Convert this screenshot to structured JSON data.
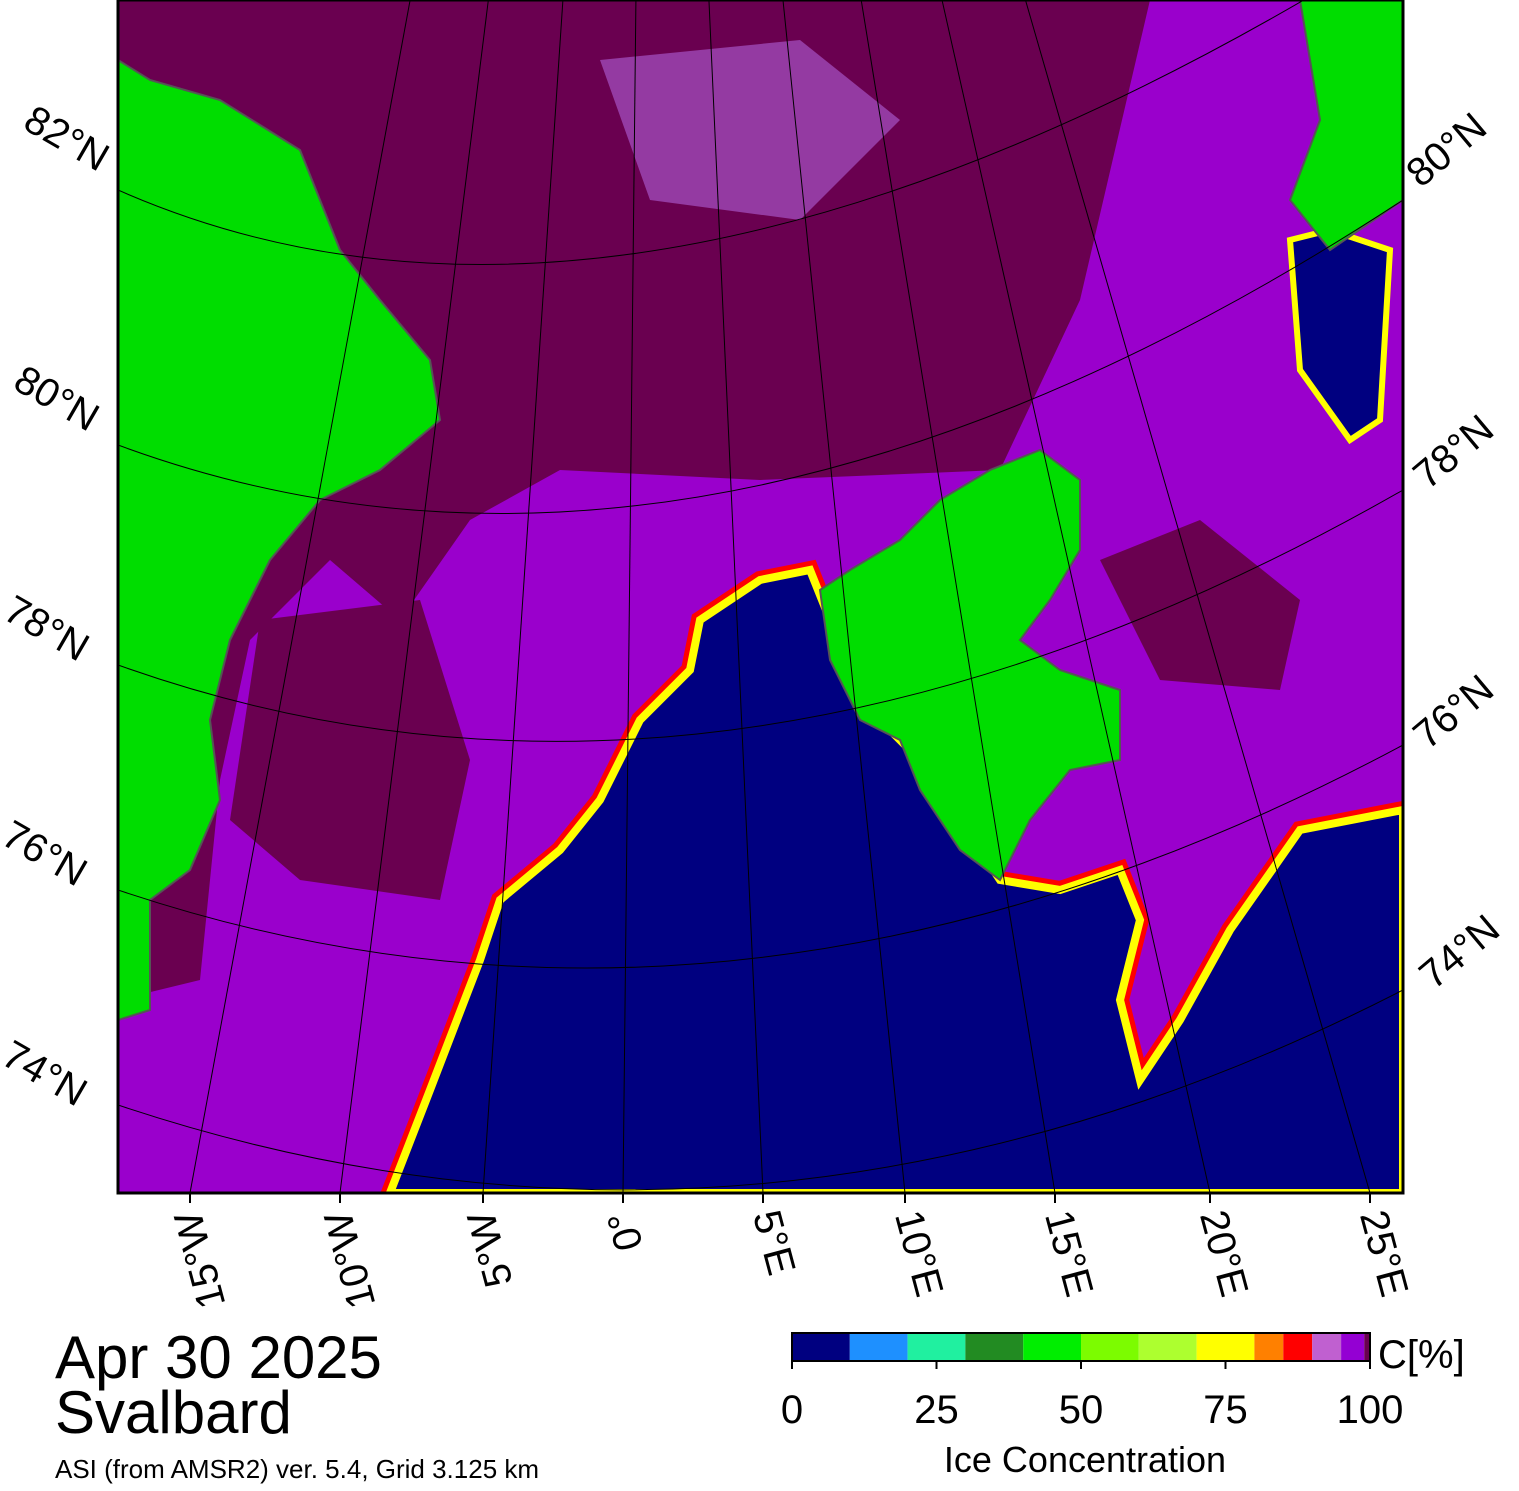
{
  "map": {
    "lat_labels_left": [
      "82°N",
      "80°N",
      "78°N",
      "76°N",
      "74°N"
    ],
    "lat_labels_right": [
      "80°N",
      "78°N",
      "76°N",
      "74°N"
    ],
    "lon_labels": [
      "15°W",
      "10°W",
      "5°W",
      "0°",
      "5°E",
      "10°E",
      "15°E",
      "20°E",
      "25°E"
    ]
  },
  "caption": {
    "date": "Apr 30 2025",
    "region": "Svalbard",
    "product": "ASI (from AMSR2) ver. 5.4,  Grid 3.125 km"
  },
  "colorbar": {
    "label": "Ice Concentration",
    "unit": "C[%]",
    "lim": [
      0,
      100
    ],
    "ticks": [
      0,
      25,
      50,
      75,
      100
    ],
    "bounds": [
      0,
      10,
      20,
      30,
      40,
      50,
      60,
      70,
      80,
      85,
      90,
      95,
      99,
      100
    ],
    "colors": [
      "#000080",
      "#1e90ff",
      "#20f0a0",
      "#228b22",
      "#00ee00",
      "#7cfc00",
      "#adff2f",
      "#ffff00",
      "#ff8000",
      "#ff0000",
      "#c060d0",
      "#9400d3",
      "#6a0050"
    ]
  }
}
